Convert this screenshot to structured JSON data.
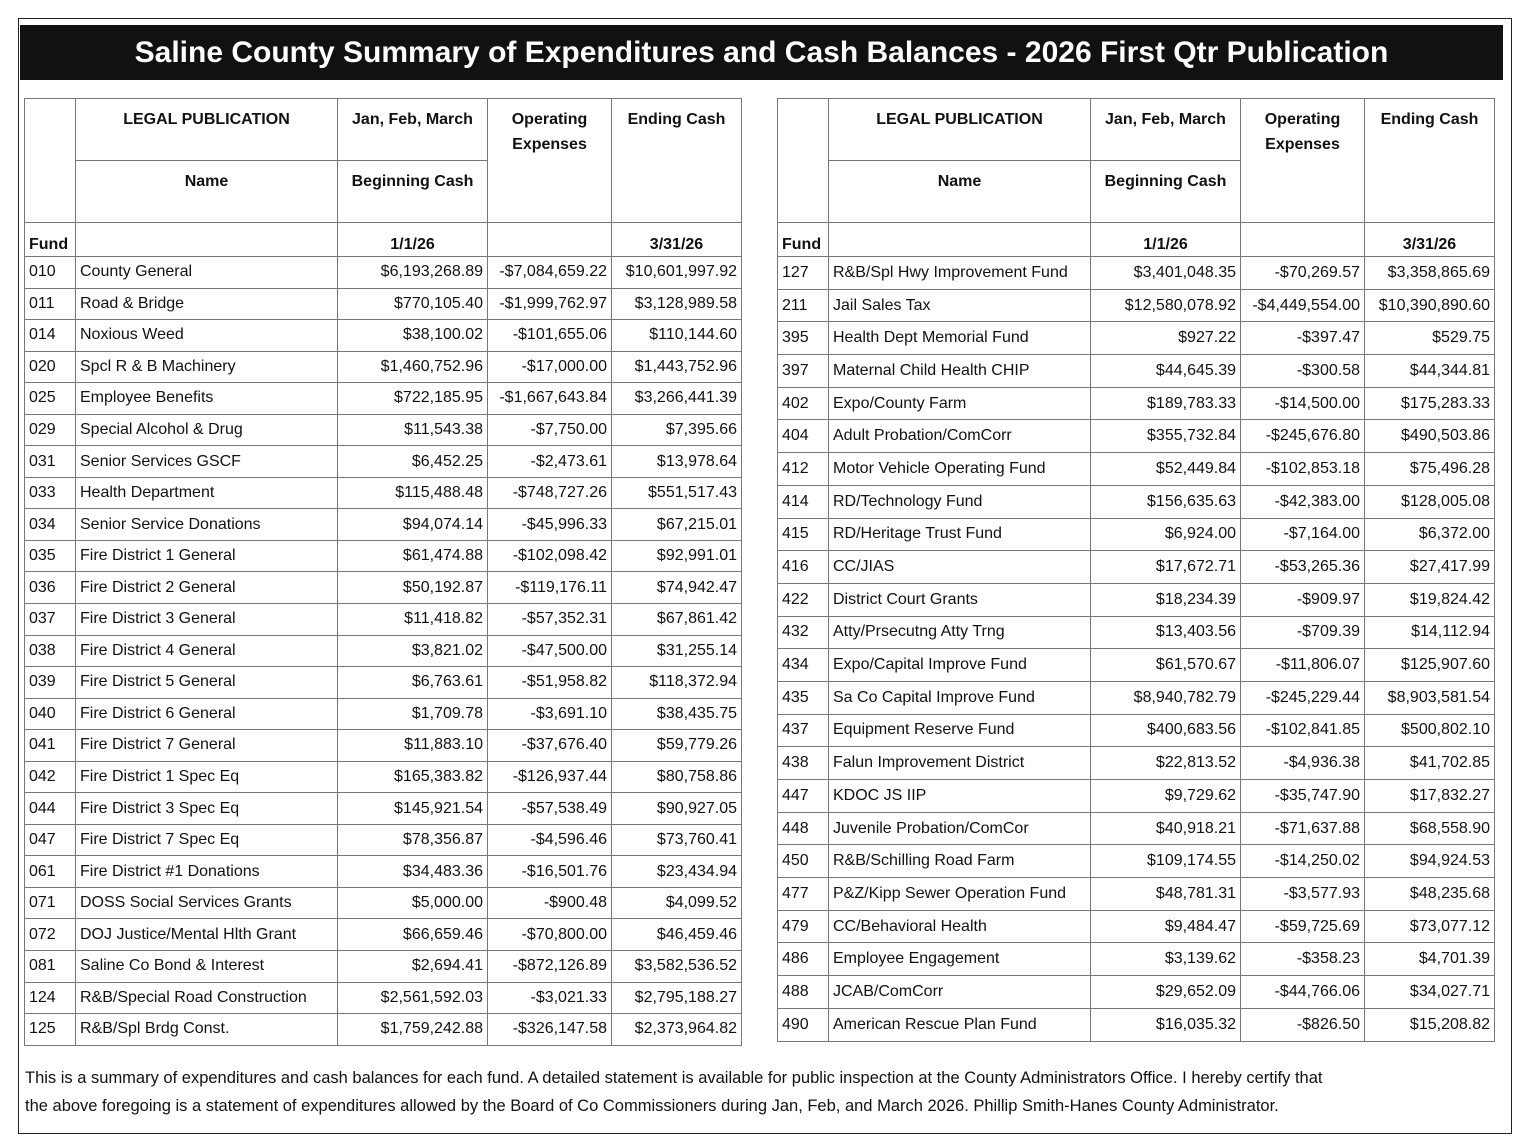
{
  "header": {
    "title": "Saline County Summary of Expenditures and Cash Balances - 2026 First Qtr Publication"
  },
  "tables": [
    {
      "columns": {
        "legal": "LEGAL PUBLICATION",
        "period": "Jan, Feb, March",
        "operating": "Operating Expenses",
        "ending": "Ending Cash",
        "name": "Name",
        "beginning": "Beginning Cash",
        "fund": "Fund",
        "start_date": "1/1/26",
        "end_date": "3/31/26"
      },
      "rows": [
        [
          "010",
          "County General",
          "$6,193,268.89",
          "-$7,084,659.22",
          "$10,601,997.92"
        ],
        [
          "011",
          "Road & Bridge",
          "$770,105.40",
          "-$1,999,762.97",
          "$3,128,989.58"
        ],
        [
          "014",
          "Noxious Weed",
          "$38,100.02",
          "-$101,655.06",
          "$110,144.60"
        ],
        [
          "020",
          "Spcl R & B Machinery",
          "$1,460,752.96",
          "-$17,000.00",
          "$1,443,752.96"
        ],
        [
          "025",
          "Employee Benefits",
          "$722,185.95",
          "-$1,667,643.84",
          "$3,266,441.39"
        ],
        [
          "029",
          "Special Alcohol & Drug",
          "$11,543.38",
          "-$7,750.00",
          "$7,395.66"
        ],
        [
          "031",
          "Senior Services GSCF",
          "$6,452.25",
          "-$2,473.61",
          "$13,978.64"
        ],
        [
          "033",
          "Health Department",
          "$115,488.48",
          "-$748,727.26",
          "$551,517.43"
        ],
        [
          "034",
          "Senior Service Donations",
          "$94,074.14",
          "-$45,996.33",
          "$67,215.01"
        ],
        [
          "035",
          "Fire District 1 General",
          "$61,474.88",
          "-$102,098.42",
          "$92,991.01"
        ],
        [
          "036",
          "Fire District 2 General",
          "$50,192.87",
          "-$119,176.11",
          "$74,942.47"
        ],
        [
          "037",
          "Fire District 3 General",
          "$11,418.82",
          "-$57,352.31",
          "$67,861.42"
        ],
        [
          "038",
          "Fire District 4 General",
          "$3,821.02",
          "-$47,500.00",
          "$31,255.14"
        ],
        [
          "039",
          "Fire District 5 General",
          "$6,763.61",
          "-$51,958.82",
          "$118,372.94"
        ],
        [
          "040",
          "Fire District 6 General",
          "$1,709.78",
          "-$3,691.10",
          "$38,435.75"
        ],
        [
          "041",
          "Fire District 7 General",
          "$11,883.10",
          "-$37,676.40",
          "$59,779.26"
        ],
        [
          "042",
          "Fire District 1 Spec Eq",
          "$165,383.82",
          "-$126,937.44",
          "$80,758.86"
        ],
        [
          "044",
          "Fire District 3 Spec Eq",
          "$145,921.54",
          "-$57,538.49",
          "$90,927.05"
        ],
        [
          "047",
          "Fire District 7 Spec Eq",
          "$78,356.87",
          "-$4,596.46",
          "$73,760.41"
        ],
        [
          "061",
          "Fire District #1 Donations",
          "$34,483.36",
          "-$16,501.76",
          "$23,434.94"
        ],
        [
          "071",
          "DOSS Social Services Grants",
          "$5,000.00",
          "-$900.48",
          "$4,099.52"
        ],
        [
          "072",
          "DOJ Justice/Mental Hlth Grant",
          "$66,659.46",
          "-$70,800.00",
          "$46,459.46"
        ],
        [
          "081",
          "Saline Co Bond & Interest",
          "$2,694.41",
          "-$872,126.89",
          "$3,582,536.52"
        ],
        [
          "124",
          "R&B/Special Road Construction",
          "$2,561,592.03",
          "-$3,021.33",
          "$2,795,188.27"
        ],
        [
          "125",
          "R&B/Spl Brdg Const.",
          "$1,759,242.88",
          "-$326,147.58",
          "$2,373,964.82"
        ]
      ]
    },
    {
      "columns": {
        "legal": "LEGAL PUBLICATION",
        "period": "Jan, Feb, March",
        "operating": "Operating Expenses",
        "ending": "Ending Cash",
        "name": "Name",
        "beginning": "Beginning Cash",
        "fund": "Fund",
        "start_date": "1/1/26",
        "end_date": "3/31/26"
      },
      "rows": [
        [
          "127",
          "R&B/Spl Hwy Improvement Fund",
          "$3,401,048.35",
          "-$70,269.57",
          "$3,358,865.69"
        ],
        [
          "211",
          "Jail Sales Tax",
          "$12,580,078.92",
          "-$4,449,554.00",
          "$10,390,890.60"
        ],
        [
          "395",
          "Health Dept Memorial Fund",
          "$927.22",
          "-$397.47",
          "$529.75"
        ],
        [
          "397",
          "Maternal Child Health CHIP",
          "$44,645.39",
          "-$300.58",
          "$44,344.81"
        ],
        [
          "402",
          "Expo/County Farm",
          "$189,783.33",
          "-$14,500.00",
          "$175,283.33"
        ],
        [
          "404",
          "Adult Probation/ComCorr",
          "$355,732.84",
          "-$245,676.80",
          "$490,503.86"
        ],
        [
          "412",
          "Motor Vehicle Operating Fund",
          "$52,449.84",
          "-$102,853.18",
          "$75,496.28"
        ],
        [
          "414",
          "RD/Technology Fund",
          "$156,635.63",
          "-$42,383.00",
          "$128,005.08"
        ],
        [
          "415",
          "RD/Heritage Trust Fund",
          "$6,924.00",
          "-$7,164.00",
          "$6,372.00"
        ],
        [
          "416",
          "CC/JIAS",
          "$17,672.71",
          "-$53,265.36",
          "$27,417.99"
        ],
        [
          "422",
          "District Court Grants",
          "$18,234.39",
          "-$909.97",
          "$19,824.42"
        ],
        [
          "432",
          "Atty/Prsecutng Atty Trng",
          "$13,403.56",
          "-$709.39",
          "$14,112.94"
        ],
        [
          "434",
          "Expo/Capital Improve Fund",
          "$61,570.67",
          "-$11,806.07",
          "$125,907.60"
        ],
        [
          "435",
          "Sa Co Capital Improve Fund",
          "$8,940,782.79",
          "-$245,229.44",
          "$8,903,581.54"
        ],
        [
          "437",
          "Equipment Reserve Fund",
          "$400,683.56",
          "-$102,841.85",
          "$500,802.10"
        ],
        [
          "438",
          "Falun Improvement District",
          "$22,813.52",
          "-$4,936.38",
          "$41,702.85"
        ],
        [
          "447",
          "KDOC JS IIP",
          "$9,729.62",
          "-$35,747.90",
          "$17,832.27"
        ],
        [
          "448",
          "Juvenile Probation/ComCor",
          "$40,918.21",
          "-$71,637.88",
          "$68,558.90"
        ],
        [
          "450",
          "R&B/Schilling Road Farm",
          "$109,174.55",
          "-$14,250.02",
          "$94,924.53"
        ],
        [
          "477",
          "P&Z/Kipp Sewer Operation Fund",
          "$48,781.31",
          "-$3,577.93",
          "$48,235.68"
        ],
        [
          "479",
          "CC/Behavioral Health",
          "$9,484.47",
          "-$59,725.69",
          "$73,077.12"
        ],
        [
          "486",
          "Employee Engagement",
          "$3,139.62",
          "-$358.23",
          "$4,701.39"
        ],
        [
          "488",
          "JCAB/ComCorr",
          "$29,652.09",
          "-$44,766.06",
          "$34,027.71"
        ],
        [
          "490",
          "American Rescue Plan Fund",
          "$16,035.32",
          "-$826.50",
          "$15,208.82"
        ]
      ]
    }
  ],
  "footer": {
    "lines": [
      "This is a summary of expenditures and cash balances for each fund.  A detailed statement is available for public inspection at the County Administrators Office. I hereby certify that",
      "the above foregoing is a statement of expenditures allowed by the Board of Co Commissioners during Jan, Feb, and March 2026. Phillip Smith-Hanes County Administrator."
    ]
  }
}
